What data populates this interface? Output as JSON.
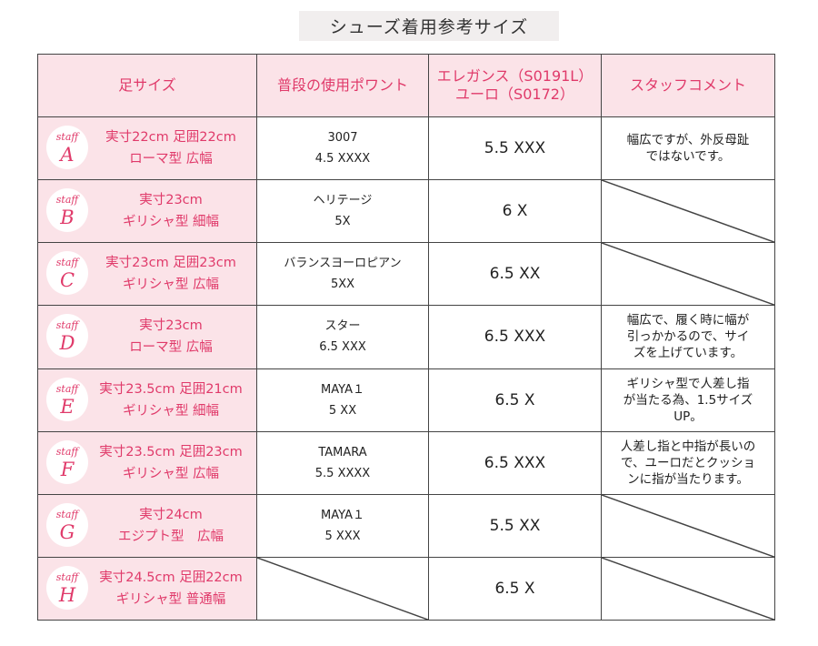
{
  "title": "シューズ着用参考サイズ",
  "headers": {
    "foot_size": "足サイズ",
    "usual_size": "普段の使用ポワント",
    "elegance_line1": "エレガンス（S0191L）",
    "elegance_line2": "ユーロ（S0172）",
    "staff_comment": "スタッフコメント"
  },
  "staff_label": "staff",
  "rows": [
    {
      "letter": "A",
      "foot1": "実寸22cm 足囲22cm",
      "foot2": "ローマ型 広幅",
      "usual1": "3007",
      "usual2": "4.5 XXXX",
      "elegance": "5.5 XXX",
      "comment": [
        "幅広ですが、外反母趾",
        "ではないです。"
      ]
    },
    {
      "letter": "B",
      "foot1": "実寸23cm",
      "foot2": "ギリシャ型 細幅",
      "usual1": "ヘリテージ",
      "usual2": "5X",
      "elegance": "6 X",
      "comment": []
    },
    {
      "letter": "C",
      "foot1": "実寸23cm 足囲23cm",
      "foot2": "ギリシャ型 広幅",
      "usual1": "バランスヨーロピアン",
      "usual2": "5XX",
      "elegance": "6.5 XX",
      "comment": []
    },
    {
      "letter": "D",
      "foot1": "実寸23cm",
      "foot2": "ローマ型 広幅",
      "usual1": "スター",
      "usual2": "6.5 XXX",
      "elegance": "6.5 XXX",
      "comment": [
        "幅広で、履く時に幅が",
        "引っかかるので、サイ",
        "ズを上げています。"
      ]
    },
    {
      "letter": "E",
      "foot1": "実寸23.5cm 足囲21cm",
      "foot2": "ギリシャ型 細幅",
      "usual1": "MAYA１",
      "usual2": "5 XX",
      "elegance": "6.5 X",
      "comment": [
        "ギリシャ型で人差し指",
        "が当たる為、1.5サイズ",
        "UP。"
      ]
    },
    {
      "letter": "F",
      "foot1": "実寸23.5cm 足囲23cm",
      "foot2": "ギリシャ型 広幅",
      "usual1": "TAMARA",
      "usual2": "5.5 XXXX",
      "elegance": "6.5 XXX",
      "comment": [
        "人差し指と中指が長いの",
        "で、ユーロだとクッショ",
        "ンに指が当たります。"
      ]
    },
    {
      "letter": "G",
      "foot1": "実寸24cm",
      "foot2": "エジプト型　広幅",
      "usual1": "MAYA１",
      "usual2": "5 XXX",
      "elegance": "5.5 XX",
      "comment": []
    },
    {
      "letter": "H",
      "foot1": "実寸24.5cm 足囲22cm",
      "foot2": "ギリシャ型 普通幅",
      "usual1": "",
      "usual2": "",
      "elegance": "6.5 X",
      "comment": []
    }
  ],
  "colors": {
    "accent": "#e03a6a",
    "pink_bg": "#fbe3e8",
    "title_bg": "#f1eeee"
  }
}
